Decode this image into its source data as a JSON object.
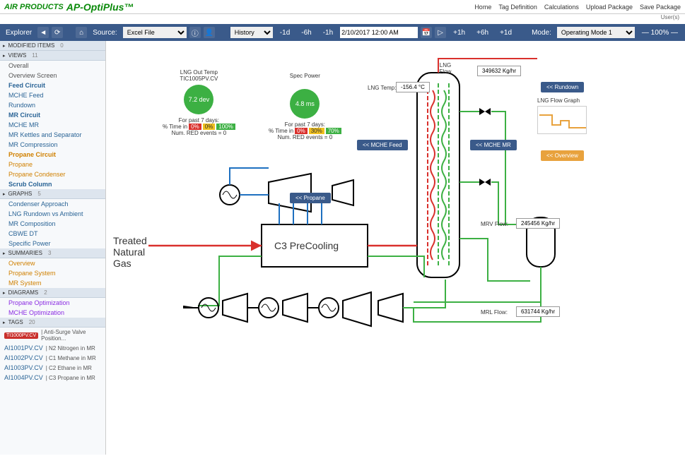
{
  "header": {
    "brand": "AIR PRODUCTS",
    "app": "AP-OptiPlus™",
    "links": [
      "Home",
      "Tag Definition",
      "Calculations",
      "Upload Package",
      "Save Package"
    ],
    "user": "User(s)"
  },
  "toolbar": {
    "explorer": "Explorer",
    "source_lbl": "Source:",
    "source_val": "Excel File",
    "history_lbl": "History",
    "nav_back": [
      "-1d",
      "-6h",
      "-1h"
    ],
    "datetime": "2/10/2017 12:00 AM",
    "nav_fwd": [
      "+1h",
      "+6h",
      "+1d"
    ],
    "mode_lbl": "Mode:",
    "mode_val": "Operating Mode 1",
    "zoom": "100%"
  },
  "sidebar": {
    "secs": [
      {
        "title": "MODIFIED ITEMS",
        "count": "0",
        "items": []
      },
      {
        "title": "VIEWS",
        "count": "11",
        "items": [
          {
            "t": "Overall",
            "c": "dark"
          },
          {
            "t": "Overview Screen",
            "c": "dark"
          },
          {
            "t": "Feed Circuit",
            "c": "bold"
          },
          {
            "t": "MCHE Feed",
            "c": ""
          },
          {
            "t": "Rundown",
            "c": ""
          },
          {
            "t": "MR Circuit",
            "c": "bold"
          },
          {
            "t": "MCHE MR",
            "c": ""
          },
          {
            "t": "MR Kettles and Separator",
            "c": ""
          },
          {
            "t": "MR Compression",
            "c": ""
          },
          {
            "t": "Propane Circuit",
            "c": "bold orange"
          },
          {
            "t": "Propane",
            "c": "orange"
          },
          {
            "t": "Propane Condenser",
            "c": "orange"
          },
          {
            "t": "Scrub Column",
            "c": "bold"
          }
        ]
      },
      {
        "title": "GRAPHS",
        "count": "5",
        "items": [
          {
            "t": "Condenser Approach",
            "c": ""
          },
          {
            "t": "LNG Rundown vs Ambient",
            "c": ""
          },
          {
            "t": "MR Composition",
            "c": ""
          },
          {
            "t": "CBWE DT",
            "c": ""
          },
          {
            "t": "Specific Power",
            "c": ""
          }
        ]
      },
      {
        "title": "SUMMARIES",
        "count": "3",
        "items": [
          {
            "t": "Overview",
            "c": "orange"
          },
          {
            "t": "Propane System",
            "c": "orange"
          },
          {
            "t": "MR System",
            "c": "orange"
          }
        ]
      },
      {
        "title": "DIAGRAMS",
        "count": "2",
        "items": [
          {
            "t": "Propane Optimization",
            "c": "purple"
          },
          {
            "t": "MCHE Optimization",
            "c": "purple"
          }
        ]
      },
      {
        "title": "TAGS",
        "count": "20",
        "items": []
      }
    ],
    "tags": [
      {
        "id": "TI1000PV.CV",
        "desc": "Anti-Surge Valve Position...",
        "badge": true
      },
      {
        "id": "AI1001PV.CV",
        "desc": "N2 Nitrogen in MR"
      },
      {
        "id": "AI1002PV.CV",
        "desc": "C1 Methane in MR"
      },
      {
        "id": "AI1003PV.CV",
        "desc": "C2 Ethane in MR"
      },
      {
        "id": "AI1004PV.CV",
        "desc": "C3 Propane in MR"
      }
    ]
  },
  "canvas": {
    "kpi1": {
      "title": "LNG Out Temp",
      "sub": "TIC1005PV.CV",
      "val": "7.2 dev",
      "past": "For past 7 days:",
      "time": "% Time in",
      "red": "Num. RED events = 0"
    },
    "kpi2": {
      "title": "Spec Power",
      "val": "4.8 ms",
      "past": "For past 7 days:",
      "time": "% Time in",
      "red": "Num. RED events = 0"
    },
    "bars": {
      "r": "0%",
      "y": "0%",
      "g": "100%"
    },
    "bars2": {
      "r": "0%",
      "y": "30%",
      "g": "70%"
    },
    "lng_flow_lbl": "LNG\nFlow",
    "lng_flow_val": "349632 Kg/hr",
    "lng_temp_lbl": "LNG Temp:",
    "lng_temp_val": "-156.4 °C",
    "lng_graph_lbl": "LNG Flow Graph",
    "btn_rundown": "<< Rundown",
    "btn_mche_feed": "<< MCHE Feed",
    "btn_mche_mr": "<< MCHE MR",
    "btn_overview": "<< Overview",
    "btn_propane": "<< Propane",
    "treated": "Treated\nNatural\nGas",
    "precool": "C3 PreCooling",
    "mrv_lbl": "MRV Flow:",
    "mrv_val": "245456 Kg/hr",
    "mrl_lbl": "MRL Flow:",
    "mrl_val": "631744 Kg/hr"
  },
  "colors": {
    "red": "#d9302c",
    "green": "#3cb043",
    "yellow": "#f0c020",
    "blue": "#3a5a8a",
    "line_red": "#d9302c",
    "line_green": "#3cb043",
    "line_blue": "#1e70c0",
    "line_black": "#000"
  }
}
